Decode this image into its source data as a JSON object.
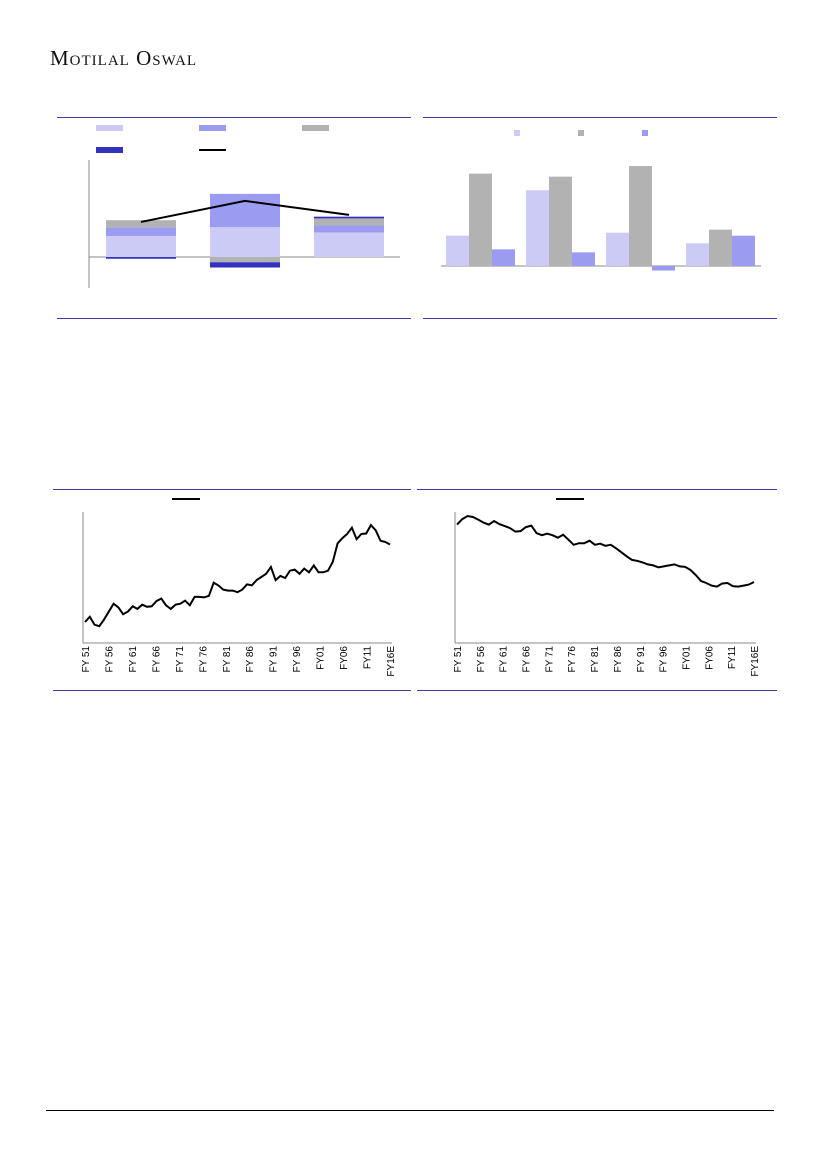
{
  "header": {
    "logo_text": "Motilal Oswal"
  },
  "colors": {
    "series1": "#cbcbf6",
    "series2": "#9b9bf2",
    "series3": "#b2b2b2",
    "series4": "#3232bf",
    "line": "#000000",
    "rule": "#3a3aa8"
  },
  "chart_data": [
    {
      "type": "bar",
      "stacked": true,
      "categories": [
        "",
        "",
        ""
      ],
      "series": [
        {
          "values": [
            12,
            17,
            14
          ]
        },
        {
          "values": [
            5,
            19,
            4
          ]
        },
        {
          "values": [
            4,
            -3,
            4
          ]
        },
        {
          "values": [
            -1,
            -3,
            1
          ]
        }
      ],
      "line": [
        20,
        32,
        24
      ],
      "ylim": [
        -18,
        55
      ],
      "legend": "top",
      "grid": false
    },
    {
      "type": "bar",
      "categories": [
        "",
        "",
        "",
        ""
      ],
      "series": [
        {
          "values": [
            10,
            25,
            11,
            7.5
          ]
        },
        {
          "values": [
            30.5,
            29.5,
            33,
            12
          ]
        },
        {
          "values": [
            5.5,
            4.5,
            -1.5,
            10
          ]
        }
      ],
      "ylim": [
        -5,
        35
      ],
      "legend": "top",
      "grid": false
    },
    {
      "type": "line",
      "x_ticks": [
        "FY 51",
        "FY 56",
        "FY 61",
        "FY 66",
        "FY 71",
        "FY 76",
        "FY 81",
        "FY 86",
        "FY 91",
        "FY 96",
        "FY01",
        "FY06",
        "FY11",
        "FY16E"
      ],
      "values": [
        4.0,
        5.0,
        3.5,
        3.2,
        4.5,
        6.0,
        7.5,
        6.8,
        5.5,
        6.0,
        7.0,
        6.5,
        7.3,
        6.9,
        7.0,
        8.0,
        8.5,
        7.2,
        6.5,
        7.3,
        7.5,
        8.1,
        7.2,
        8.8,
        8.8,
        8.7,
        9.0,
        11.5,
        11.0,
        10.2,
        10.0,
        10.0,
        9.7,
        10.2,
        11.2,
        11.0,
        12.0,
        12.6,
        13.2,
        14.5,
        12.0,
        12.8,
        12.4,
        13.8,
        14.0,
        13.2,
        14.2,
        13.5,
        14.8,
        13.5,
        13.5,
        13.8,
        15.5,
        19.0,
        20.0,
        20.8,
        22.0,
        19.8,
        20.8,
        20.9,
        22.5,
        21.5,
        19.5,
        19.3,
        18.8
      ],
      "ylim": [
        0,
        25
      ],
      "grid": false
    },
    {
      "type": "line",
      "x_ticks": [
        "FY 51",
        "FY 56",
        "FY 61",
        "FY 66",
        "FY 71",
        "FY 76",
        "FY 81",
        "FY 86",
        "FY 91",
        "FY 96",
        "FY01",
        "FY06",
        "FY11",
        "FY16E"
      ],
      "values": [
        23.5,
        24.6,
        25.2,
        25.0,
        24.5,
        23.9,
        23.5,
        24.2,
        23.6,
        23.2,
        22.8,
        22.1,
        22.2,
        23.0,
        23.3,
        21.8,
        21.4,
        21.7,
        21.4,
        20.9,
        21.5,
        20.5,
        19.5,
        19.8,
        19.8,
        20.3,
        19.5,
        19.7,
        19.3,
        19.5,
        18.8,
        18.0,
        17.2,
        16.5,
        16.3,
        16.0,
        15.6,
        15.4,
        15.0,
        15.2,
        15.4,
        15.6,
        15.2,
        15.1,
        14.5,
        13.5,
        12.3,
        11.9,
        11.4,
        11.2,
        11.8,
        11.9,
        11.3,
        11.2,
        11.4,
        11.6,
        12.1
      ],
      "ylim": [
        0,
        26
      ],
      "grid": false
    }
  ]
}
